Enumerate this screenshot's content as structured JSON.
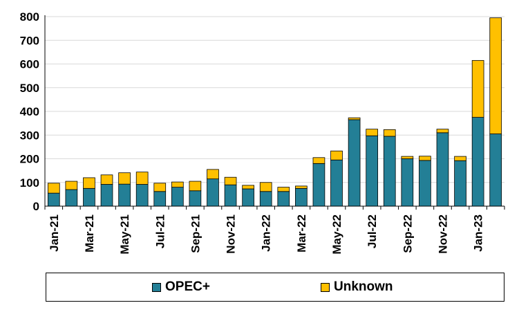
{
  "chart_data": {
    "type": "bar",
    "stacked": true,
    "title": "",
    "xlabel": "",
    "ylabel": "",
    "ylim": [
      0,
      800
    ],
    "yticks": [
      0,
      100,
      200,
      300,
      400,
      500,
      600,
      700,
      800
    ],
    "grid": true,
    "legend_position": "bottom",
    "categories": [
      "Jan-21",
      "Feb-21",
      "Mar-21",
      "Apr-21",
      "May-21",
      "Jun-21",
      "Jul-21",
      "Aug-21",
      "Sep-21",
      "Oct-21",
      "Nov-21",
      "Dec-21",
      "Jan-22",
      "Feb-22",
      "Mar-22",
      "Apr-22",
      "May-22",
      "Jun-22",
      "Jul-22",
      "Aug-22",
      "Sep-22",
      "Oct-22",
      "Nov-22",
      "Dec-22",
      "Jan-23",
      "Feb-23"
    ],
    "xtick_labels": [
      "Jan-21",
      "Mar-21",
      "May-21",
      "Jul-21",
      "Sep-21",
      "Nov-21",
      "Jan-22",
      "Mar-22",
      "May-22",
      "Jul-22",
      "Sep-22",
      "Nov-22",
      "Jan-23"
    ],
    "series": [
      {
        "name": "OPEC+",
        "color": "#237F96",
        "values": [
          55,
          70,
          75,
          92,
          93,
          92,
          62,
          80,
          65,
          115,
          90,
          73,
          62,
          62,
          75,
          180,
          195,
          365,
          297,
          295,
          200,
          193,
          310,
          192,
          375,
          305
        ]
      },
      {
        "name": "Unknown",
        "color": "#FFC000",
        "values": [
          42,
          35,
          45,
          40,
          48,
          52,
          35,
          22,
          40,
          40,
          32,
          15,
          38,
          18,
          10,
          25,
          38,
          8,
          28,
          28,
          10,
          18,
          15,
          18,
          240,
          490
        ]
      }
    ]
  }
}
